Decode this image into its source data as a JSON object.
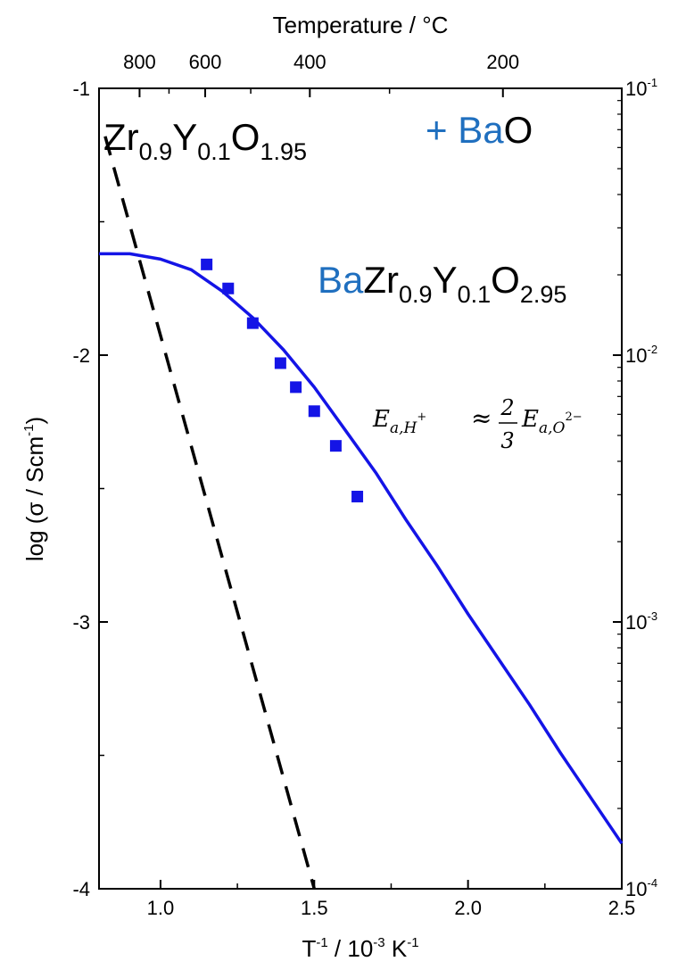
{
  "chart_data": {
    "type": "line",
    "xlabel_main": "T",
    "xlabel_sup1": "-1",
    "xlabel_mid": " / 10",
    "xlabel_sup2": "-3",
    "xlabel_unit": " K",
    "xlabel_sup3": "-1",
    "ylabel_main": "log (σ / Scm",
    "ylabel_sup": "-1",
    "ylabel_end": ")",
    "top_axis_label": "Temperature / °C",
    "xlim": [
      0.8,
      2.5
    ],
    "ylim": [
      -4,
      -1
    ],
    "x_ticks": [
      1.0,
      1.5,
      2.0,
      2.5
    ],
    "x_tick_labels": [
      "1.0",
      "1.5",
      "2.0",
      "2.5"
    ],
    "y_ticks": [
      -1,
      -2,
      -3,
      -4
    ],
    "y_tick_labels": [
      "-1",
      "-2",
      "-3",
      "-4"
    ],
    "top_ticks_celsius": [
      800,
      600,
      400,
      200
    ],
    "top_tick_labels": [
      "800",
      "600",
      "400",
      "200"
    ],
    "right_ticks_log": [
      -1,
      -2,
      -3,
      -4
    ],
    "right_tick_base": [
      "10",
      "10",
      "10",
      "10"
    ],
    "right_tick_exp": [
      "-1",
      "-2",
      "-3",
      "-4"
    ],
    "series": [
      {
        "line": "solid",
        "color": "#1414e6",
        "x": [
          0.8,
          0.9,
          1.0,
          1.1,
          1.2,
          1.3,
          1.4,
          1.5,
          1.6,
          1.7,
          1.8,
          1.9,
          2.0,
          2.1,
          2.2,
          2.3,
          2.4,
          2.5
        ],
        "y": [
          -1.62,
          -1.62,
          -1.64,
          -1.68,
          -1.76,
          -1.86,
          -1.98,
          -2.12,
          -2.28,
          -2.44,
          -2.62,
          -2.79,
          -2.97,
          -3.14,
          -3.31,
          -3.49,
          -3.66,
          -3.83
        ]
      },
      {
        "line": "dashed",
        "color": "#000000",
        "x": [
          0.82,
          1.5
        ],
        "y": [
          -1.18,
          -4.0
        ]
      },
      {
        "type": "scatter",
        "marker": "square",
        "color": "#1414e6",
        "x": [
          1.15,
          1.22,
          1.3,
          1.39,
          1.44,
          1.5,
          1.57,
          1.64
        ],
        "y": [
          -1.66,
          -1.75,
          -1.88,
          -2.03,
          -2.12,
          -2.21,
          -2.34,
          -2.53
        ]
      }
    ],
    "annotations": {
      "zr_formula": {
        "base": "Zr",
        "s1": "0.9",
        "b2": "Y",
        "s2": "0.1",
        "b3": "O",
        "s3": "1.95"
      },
      "plus_bao": {
        "plus": "+ ",
        "ba": "Ba",
        "o": "O"
      },
      "bzy_formula": {
        "ba": "Ba",
        "b1": "Zr",
        "s1": "0.9",
        "b2": "Y",
        "s2": "0.1",
        "b3": "O",
        "s3": "2.95"
      },
      "equation": {
        "lhs": "E",
        "lhs_sub": "a,H",
        "lhs_sup": "+",
        "approx": "≈",
        "num": "2",
        "den": "3",
        "rhs": "E",
        "rhs_sub": "a,O",
        "rhs_sup": "2−"
      }
    },
    "colors": {
      "accent": "#1f6fbf",
      "curve": "#1414e6"
    }
  }
}
